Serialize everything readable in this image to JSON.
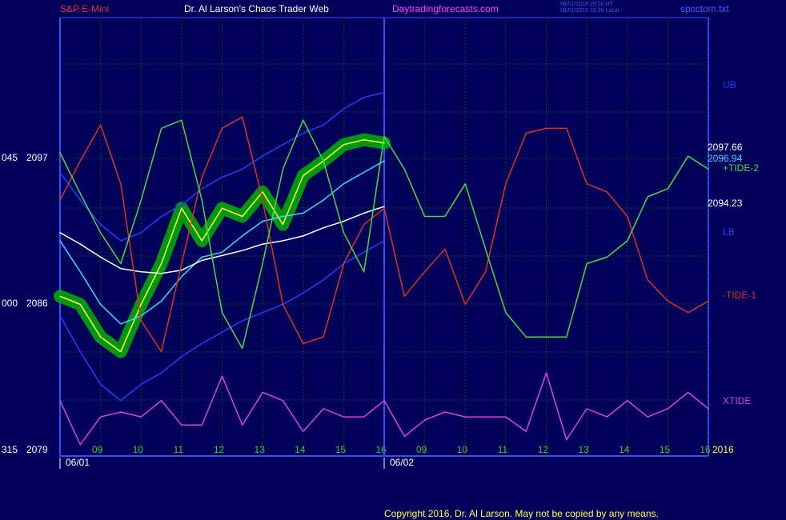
{
  "header": {
    "symbol": "S&P E-Mini",
    "site_title": "Dr. Al Larson's Chaos Trader Web",
    "url": "Daytradingforecasts.com",
    "timestamps": [
      "06/01/2016 20:20 UT",
      "06/01/2016 16:20 Local"
    ],
    "file": "spcctom.txt"
  },
  "footer": {
    "copyright": "Copyright 2016, Dr. Al Larson. May not be copied by any means."
  },
  "chart_data": {
    "type": "line",
    "left_labels": {
      "angles": [
        "045",
        "000",
        "315"
      ],
      "prices": [
        "2097",
        "2086",
        "2079"
      ]
    },
    "right_labels": {
      "last_price": "2097.66",
      "average": "2096.94",
      "long_average": "2094.23",
      "year": "2016"
    },
    "x": [
      0,
      0.5,
      1,
      1.5,
      2,
      2.5,
      3,
      3.5,
      4,
      4.5,
      5,
      5.5,
      6,
      6.5,
      7,
      7.5,
      8,
      8.5,
      9,
      9.5,
      10,
      10.5,
      11,
      11.5,
      12,
      12.5,
      13,
      13.5,
      14,
      14.5,
      15,
      15.5,
      16
    ],
    "xlim": [
      0,
      16
    ],
    "xticks": [
      {
        "value": 1,
        "label": "09"
      },
      {
        "value": 2,
        "label": "10"
      },
      {
        "value": 3,
        "label": "11"
      },
      {
        "value": 4,
        "label": "12"
      },
      {
        "value": 5,
        "label": "13"
      },
      {
        "value": 6,
        "label": "14"
      },
      {
        "value": 7,
        "label": "15"
      },
      {
        "value": 8,
        "label": "16"
      },
      {
        "value": 9,
        "label": "09"
      },
      {
        "value": 10,
        "label": "10"
      },
      {
        "value": 11,
        "label": "11"
      },
      {
        "value": 12,
        "label": "12"
      },
      {
        "value": 13,
        "label": "13"
      },
      {
        "value": 14,
        "label": "14"
      },
      {
        "value": 15,
        "label": "15"
      },
      {
        "value": 16,
        "label": "16"
      }
    ],
    "date_ticks": [
      {
        "value": 0,
        "label": "06/01"
      },
      {
        "value": 8,
        "label": "06/02"
      }
    ],
    "ylim": [
      2078.8,
      2105.3
    ],
    "grid": true,
    "series": [
      {
        "color": "#00b000",
        "glow": true,
        "values": [
          2088.6,
          2088.1,
          2086.1,
          2085.2,
          2088.1,
          2090.6,
          2094.0,
          2092.0,
          2094.0,
          2093.5,
          2095.0,
          2093.0,
          2096.0,
          2096.9,
          2097.9,
          2098.2,
          2098.0,
          null,
          null,
          null,
          null,
          null,
          null,
          null,
          null,
          null,
          null,
          null,
          null,
          null,
          null,
          null,
          null
        ]
      },
      {
        "color": "#ffff40",
        "values": [
          2088.6,
          2088.1,
          2086.1,
          2085.2,
          2088.1,
          2090.6,
          2094.0,
          2092.0,
          2094.0,
          2093.5,
          2095.0,
          2093.0,
          2096.0,
          2096.9,
          2097.9,
          2098.2,
          2098.0,
          null,
          null,
          null,
          null,
          null,
          null,
          null,
          null,
          null,
          null,
          null,
          null,
          null,
          null,
          null,
          null
        ]
      },
      {
        "color": "#30e0ff",
        "values": [
          2092.0,
          2090.1,
          2088.1,
          2086.9,
          2087.4,
          2088.3,
          2089.8,
          2091.0,
          2091.3,
          2092.3,
          2093.2,
          2093.5,
          2093.7,
          2094.5,
          2095.5,
          2096.2,
          2096.9,
          null,
          null,
          null,
          null,
          null,
          null,
          null,
          null,
          null,
          null,
          null,
          null,
          null,
          null,
          null,
          null
        ]
      },
      {
        "color": "#ffffff",
        "values": [
          2092.5,
          2091.8,
          2091.0,
          2090.3,
          2090.1,
          2090.0,
          2090.2,
          2090.8,
          2091.1,
          2091.4,
          2091.8,
          2092.0,
          2092.3,
          2092.8,
          2093.2,
          2093.7,
          2094.1,
          null,
          null,
          null,
          null,
          null,
          null,
          null,
          null,
          null,
          null,
          null,
          null,
          null,
          null,
          null,
          null
        ]
      },
      {
        "name": "UB",
        "color": "#2040ff",
        "values": [
          2096.2,
          2094.5,
          2093.0,
          2092.0,
          2092.5,
          2093.5,
          2094.2,
          2095.2,
          2095.9,
          2096.4,
          2097.2,
          2097.9,
          2098.6,
          2099.1,
          2100.1,
          2100.8,
          2101.1,
          null,
          null,
          null,
          null,
          null,
          null,
          null,
          null,
          null,
          null,
          null,
          null,
          null,
          null,
          null,
          null
        ]
      },
      {
        "name": "LB",
        "color": "#2040ff",
        "values": [
          2087.4,
          2085.2,
          2083.2,
          2082.2,
          2083.2,
          2083.9,
          2084.9,
          2085.7,
          2086.4,
          2087.1,
          2087.6,
          2088.1,
          2088.8,
          2089.6,
          2090.6,
          2091.3,
          2092.0,
          null,
          null,
          null,
          null,
          null,
          null,
          null,
          null,
          null,
          null,
          null,
          null,
          null,
          null,
          null,
          null
        ]
      },
      {
        "name": "-TIDE-1",
        "color": "#e03020",
        "values": [
          2094.5,
          2096.9,
          2099.1,
          2095.5,
          2087.1,
          2085.2,
          2090.6,
          2095.9,
          2098.9,
          2099.6,
          2094.5,
          2088.1,
          2085.7,
          2086.1,
          2090.6,
          2093.0,
          2094.0,
          2088.6,
          2090.1,
          2091.5,
          2088.1,
          2090.1,
          2095.5,
          2098.6,
          2098.9,
          2098.9,
          2095.5,
          2095.0,
          2093.5,
          2089.6,
          2088.3,
          2087.6,
          2088.3
        ]
      },
      {
        "name": "+TIDE-2",
        "color": "#40e040",
        "values": [
          2097.4,
          2094.9,
          2092.5,
          2090.6,
          2094.5,
          2098.9,
          2099.4,
          2094.5,
          2087.6,
          2085.4,
          2090.6,
          2096.4,
          2099.4,
          2096.9,
          2092.5,
          2090.1,
          2098.4,
          2096.4,
          2093.5,
          2093.5,
          2095.5,
          2091.5,
          2087.6,
          2086.1,
          2086.1,
          2086.1,
          2090.6,
          2091.0,
          2092.0,
          2094.7,
          2095.2,
          2097.2,
          2096.4
        ]
      },
      {
        "name": "XTIDE",
        "color": "#e040e0",
        "values": [
          2082.2,
          2079.5,
          2081.2,
          2081.5,
          2081.2,
          2082.2,
          2080.7,
          2080.7,
          2083.7,
          2080.7,
          2082.7,
          2082.2,
          2080.3,
          2081.7,
          2081.2,
          2081.2,
          2082.2,
          2080.0,
          2081.0,
          2081.5,
          2081.2,
          2081.2,
          2081.2,
          2080.3,
          2083.9,
          2079.8,
          2081.7,
          2081.2,
          2082.2,
          2081.2,
          2081.7,
          2082.7,
          2081.7
        ]
      }
    ]
  }
}
